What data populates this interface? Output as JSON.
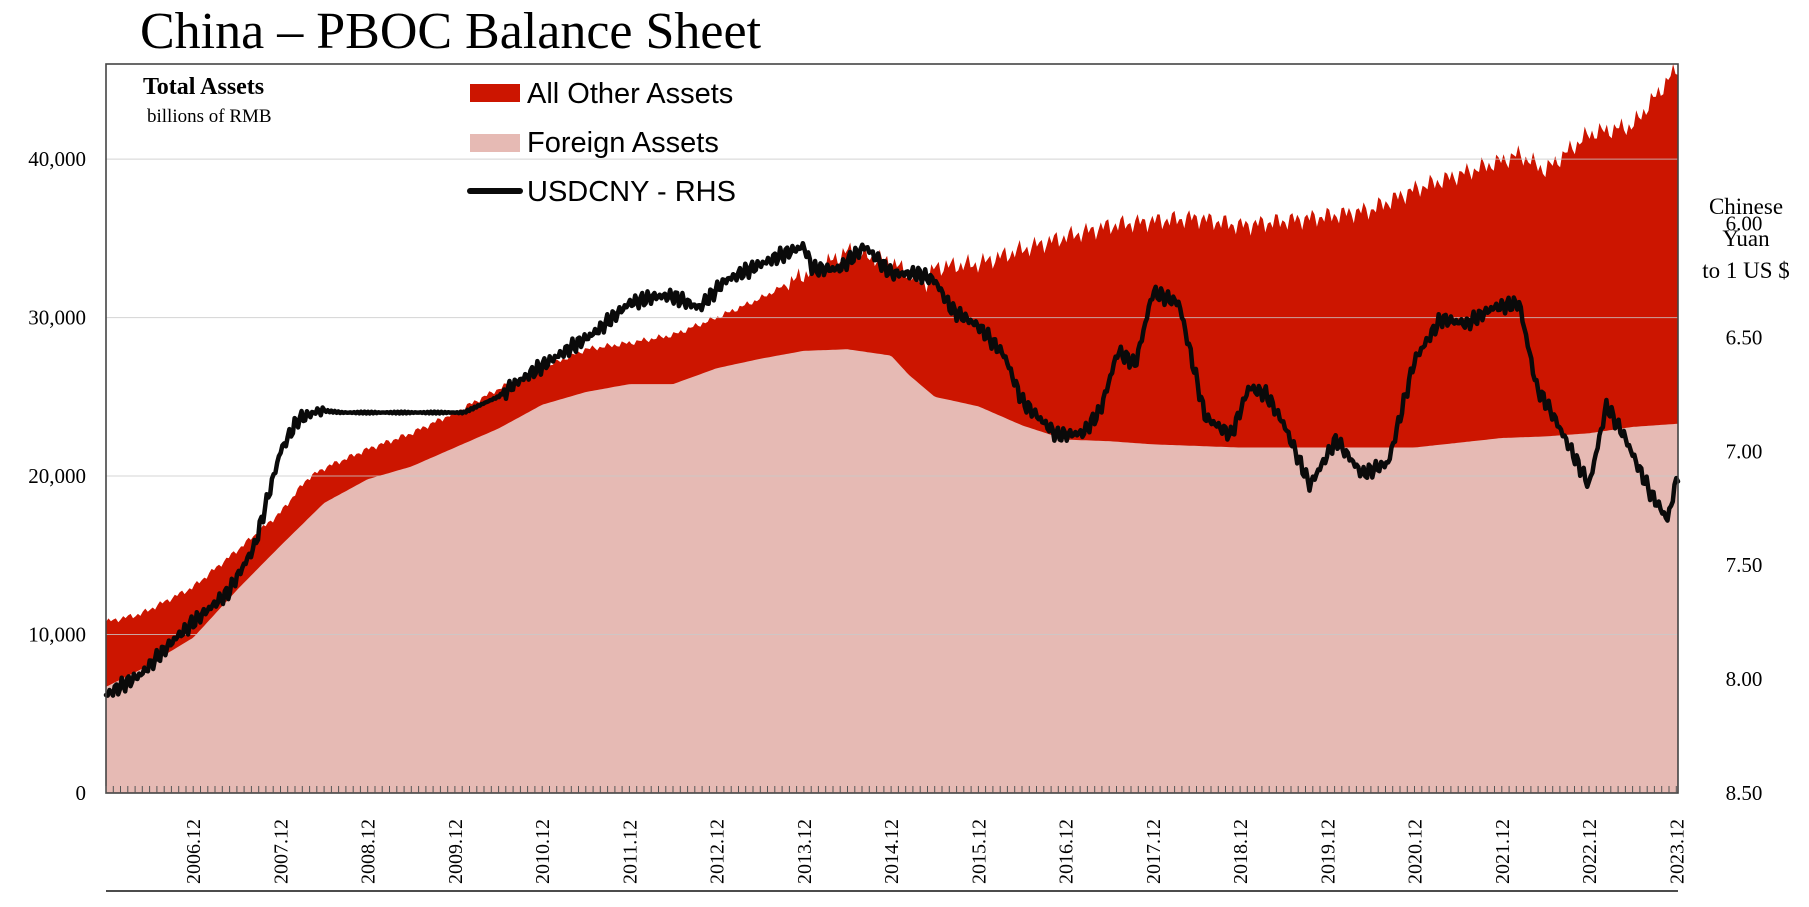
{
  "chart_data": {
    "type": "area",
    "title": "China – PBOC Balance Sheet",
    "left_axis_title": "Total Assets",
    "left_axis_subtitle": "billions of RMB",
    "right_axis_title": [
      "Chinese",
      "Yuan",
      "to 1 US $"
    ],
    "y_left": {
      "min": 0,
      "max": 46000,
      "ticks": [
        0,
        10000,
        20000,
        30000,
        40000
      ],
      "tick_labels": [
        "0",
        "10,000",
        "20,000",
        "30,000",
        "40,000"
      ]
    },
    "y_right": {
      "top": 5.3,
      "bottom": 8.5,
      "inverted": true,
      "ticks": [
        6.0,
        6.5,
        7.0,
        7.5,
        8.0,
        8.5
      ],
      "tick_labels": [
        "6.00",
        "6.50",
        "7.00",
        "7.50",
        "8.00",
        "8.50"
      ]
    },
    "x_axis": {
      "start": 2005.9,
      "end": 2023.92,
      "ticks": [
        2006.9,
        2007.9,
        2008.9,
        2009.9,
        2010.9,
        2011.9,
        2012.9,
        2013.9,
        2014.9,
        2015.9,
        2016.9,
        2017.9,
        2018.9,
        2019.9,
        2020.9,
        2021.9,
        2022.9,
        2023.9
      ],
      "tick_labels": [
        "2006.12",
        "2007.12",
        "2008.12",
        "2009.12",
        "2010.12",
        "2011.12",
        "2012.12",
        "2013.12",
        "2014.12",
        "2015.12",
        "2016.12",
        "2017.12",
        "2018.12",
        "2019.12",
        "2020.12",
        "2021.12",
        "2022.12",
        "2023.12"
      ]
    },
    "legend": [
      {
        "name": "All Other Assets",
        "color": "#cc1500",
        "kind": "area"
      },
      {
        "name": "Foreign Assets",
        "color": "#e6bab4",
        "kind": "area"
      },
      {
        "name": "USDCNY - RHS",
        "color": "#0a0a0a",
        "kind": "line"
      }
    ],
    "series": [
      {
        "name": "Foreign Assets",
        "axis": "left",
        "x": [
          2005.9,
          2006.3,
          2006.9,
          2007.4,
          2007.9,
          2008.4,
          2008.9,
          2009.4,
          2009.9,
          2010.4,
          2010.9,
          2011.4,
          2011.9,
          2012.4,
          2012.9,
          2013.4,
          2013.9,
          2014.4,
          2014.9,
          2015.1,
          2015.4,
          2015.9,
          2016.4,
          2016.9,
          2017.4,
          2017.9,
          2018.4,
          2018.9,
          2019.4,
          2019.9,
          2020.4,
          2020.9,
          2021.4,
          2021.9,
          2022.4,
          2022.9,
          2023.4,
          2023.92
        ],
        "values": [
          6700,
          7800,
          9800,
          12800,
          15600,
          18300,
          19800,
          20600,
          21800,
          23000,
          24500,
          25300,
          25800,
          25800,
          26800,
          27400,
          27900,
          28000,
          27600,
          26400,
          25000,
          24400,
          23200,
          22300,
          22200,
          22000,
          21900,
          21800,
          21800,
          21800,
          21800,
          21800,
          22100,
          22400,
          22500,
          22700,
          23100,
          23300
        ]
      },
      {
        "name": "All Other Assets (stacked total)",
        "axis": "left",
        "x": [
          2005.9,
          2006.3,
          2006.9,
          2007.4,
          2007.9,
          2008.2,
          2008.4,
          2008.9,
          2009.4,
          2009.9,
          2010.4,
          2010.9,
          2011.4,
          2011.9,
          2012.4,
          2012.9,
          2013.4,
          2013.9,
          2014.1,
          2014.4,
          2014.9,
          2015.3,
          2015.4,
          2015.9,
          2016.4,
          2016.9,
          2017.4,
          2017.9,
          2018.4,
          2018.9,
          2019.4,
          2019.9,
          2020.4,
          2020.9,
          2021.4,
          2021.9,
          2022.1,
          2022.4,
          2022.9,
          2023.4,
          2023.92
        ],
        "values": [
          10800,
          11300,
          13000,
          15300,
          17700,
          19800,
          20500,
          21700,
          22700,
          24000,
          25500,
          26800,
          28000,
          28400,
          28900,
          30000,
          31200,
          32700,
          33200,
          34200,
          33500,
          32100,
          33200,
          33400,
          34300,
          35100,
          35800,
          36100,
          36300,
          35800,
          36100,
          36400,
          36800,
          38100,
          39000,
          39900,
          40300,
          39300,
          41600,
          42100,
          45800
        ]
      },
      {
        "name": "USDCNY - RHS",
        "axis": "right",
        "x": [
          2005.9,
          2006.3,
          2006.7,
          2006.9,
          2007.3,
          2007.6,
          2007.9,
          2008.1,
          2008.35,
          2008.6,
          2009.0,
          2009.5,
          2010.0,
          2010.4,
          2010.6,
          2011.0,
          2011.5,
          2011.9,
          2012.2,
          2012.4,
          2012.7,
          2013.0,
          2013.4,
          2013.7,
          2013.9,
          2014.0,
          2014.3,
          2014.6,
          2014.9,
          2015.2,
          2015.4,
          2015.6,
          2015.9,
          2016.2,
          2016.4,
          2016.8,
          2017.1,
          2017.3,
          2017.5,
          2017.7,
          2017.9,
          2018.2,
          2018.5,
          2018.8,
          2019.0,
          2019.2,
          2019.4,
          2019.7,
          2020.0,
          2020.3,
          2020.6,
          2020.9,
          2021.2,
          2021.5,
          2021.8,
          2022.1,
          2022.3,
          2022.5,
          2022.9,
          2023.1,
          2023.3,
          2023.6,
          2023.8,
          2023.92
        ],
        "values": [
          8.07,
          7.98,
          7.82,
          7.75,
          7.62,
          7.42,
          7.0,
          6.86,
          6.82,
          6.83,
          6.83,
          6.83,
          6.83,
          6.76,
          6.7,
          6.6,
          6.48,
          6.35,
          6.32,
          6.32,
          6.37,
          6.25,
          6.18,
          6.13,
          6.1,
          6.2,
          6.2,
          6.1,
          6.22,
          6.22,
          6.25,
          6.38,
          6.45,
          6.58,
          6.78,
          6.93,
          6.92,
          6.82,
          6.56,
          6.62,
          6.3,
          6.35,
          6.85,
          6.93,
          6.72,
          6.75,
          6.88,
          7.15,
          6.95,
          7.1,
          7.05,
          6.6,
          6.42,
          6.44,
          6.37,
          6.35,
          6.72,
          6.85,
          7.15,
          6.8,
          6.93,
          7.18,
          7.3,
          7.1
        ]
      }
    ]
  }
}
